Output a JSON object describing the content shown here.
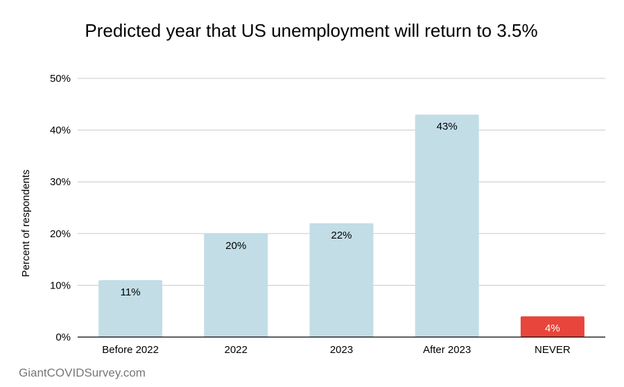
{
  "chart_data": {
    "type": "bar",
    "title": "Predicted year that US unemployment will return to 3.5%",
    "ylabel": "Percent of respondents",
    "xlabel": "",
    "categories": [
      "Before 2022",
      "2022",
      "2023",
      "After 2023",
      "NEVER"
    ],
    "values": [
      11,
      20,
      22,
      43,
      4
    ],
    "data_labels": [
      "11%",
      "20%",
      "22%",
      "43%",
      "4%"
    ],
    "ylim": [
      0,
      50
    ],
    "yticks": [
      0,
      10,
      20,
      30,
      40,
      50
    ],
    "ytick_labels": [
      "0%",
      "10%",
      "20%",
      "30%",
      "40%",
      "50%"
    ],
    "grid": true,
    "legend": "none",
    "colors": {
      "default_bar": "#c2dde6",
      "highlight_bar": "#e8453c",
      "default_label": "#000000",
      "highlight_label": "#ffffff",
      "gridline": "#c8c8c8",
      "axis": "#000000"
    },
    "highlight_index": 4
  },
  "footer": {
    "source": "GiantCOVIDSurvey.com"
  }
}
